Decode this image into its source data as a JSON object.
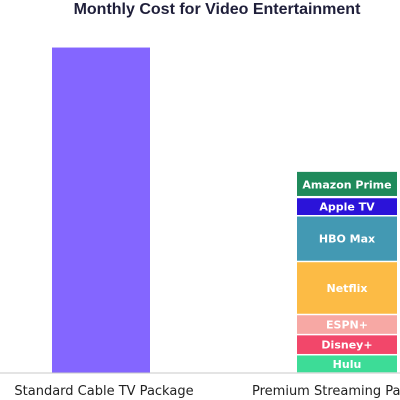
{
  "chart_data": {
    "type": "bar",
    "title": "Monthly Cost for Video Entertainment",
    "categories": [
      "Standard Cable TV Package",
      "Premium Streaming Package"
    ],
    "ylim": [
      0,
      102
    ],
    "grid": false,
    "legend": "none",
    "cable": {
      "value": 89.0,
      "color": "#8466ff"
    },
    "streaming_stack": [
      {
        "name": "Hulu",
        "value": 5.0,
        "color": "#3ddc97",
        "label_color": "#1a1a1a"
      },
      {
        "name": "Disney+",
        "value": 5.5,
        "color": "#f2476a",
        "label_color": "#1a1a1a"
      },
      {
        "name": "ESPN+",
        "value": 5.5,
        "color": "#f7a8a4",
        "label_color": "#1a1a1a"
      },
      {
        "name": "Netflix",
        "value": 14.5,
        "color": "#fcbb45",
        "label_color": "#1a1a1a"
      },
      {
        "name": "HBO Max",
        "value": 12.5,
        "color": "#4399b3",
        "label_color": "#ffffff"
      },
      {
        "name": "Apple TV",
        "value": 5.0,
        "color": "#2b13d9",
        "label_color": "#ffffff"
      },
      {
        "name": "Amazon Prime",
        "value": 7.0,
        "color": "#1f8a5b",
        "label_color": "#ffffff"
      }
    ]
  }
}
